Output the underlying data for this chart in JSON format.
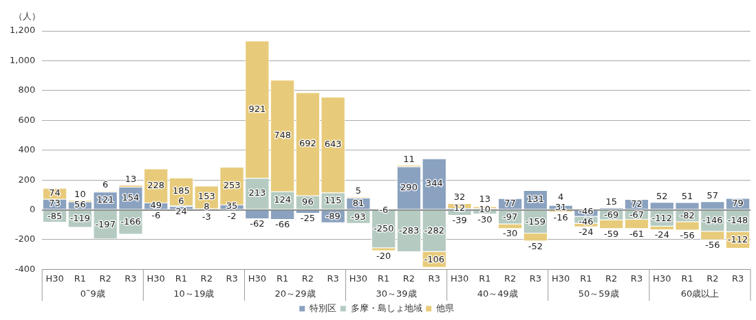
{
  "chart_data": {
    "type": "bar",
    "stacked": true,
    "ylabel": "（人）",
    "categories": [
      "H30",
      "R1",
      "R2",
      "R3",
      "H30",
      "R1",
      "R2",
      "R3",
      "H30",
      "R1",
      "R2",
      "R3",
      "H30",
      "R1",
      "R2",
      "R3",
      "H30",
      "R1",
      "R2",
      "R3",
      "H30",
      "R1",
      "R2",
      "R3",
      "H30",
      "R1",
      "R2",
      "R3"
    ],
    "annotations": [
      "0˜9歳",
      "10～19歳",
      "20～29歳",
      "30～39歳",
      "40～49歳",
      "50～59歳",
      "60歳以上"
    ],
    "series": [
      {
        "name": "特別区",
        "color": "#8aa2bf",
        "values": [
          73,
          56,
          121,
          154,
          49,
          24,
          8,
          35,
          -62,
          -66,
          -25,
          -89,
          81,
          -6,
          290,
          344,
          12,
          10,
          77,
          131,
          31,
          -46,
          15,
          72,
          52,
          51,
          57,
          79
        ]
      },
      {
        "name": "多摩・島しょ地域",
        "color": "#b5cbc1",
        "values": [
          -85,
          -119,
          -197,
          -166,
          -6,
          6,
          -3,
          -2,
          213,
          124,
          96,
          115,
          -93,
          -250,
          -283,
          -282,
          -39,
          -30,
          -97,
          -159,
          4,
          -46,
          -69,
          -67,
          -112,
          -82,
          -146,
          -148
        ]
      },
      {
        "name": "他県",
        "color": "#e8cb7a",
        "values": [
          74,
          10,
          6,
          13,
          228,
          185,
          153,
          253,
          921,
          748,
          692,
          643,
          5,
          -20,
          11,
          -106,
          32,
          13,
          -30,
          -52,
          -16,
          -24,
          -59,
          -61,
          -24,
          -56,
          -56,
          -112
        ]
      }
    ],
    "ylim": [
      -400,
      1200
    ],
    "yticks": [
      -400,
      -200,
      0,
      200,
      400,
      600,
      800,
      {
        "value": 1000,
        "label": "1,000"
      },
      {
        "value": 1200,
        "label": "1,200"
      }
    ],
    "grid": "y",
    "legend": "bottom",
    "data_labels": true
  }
}
